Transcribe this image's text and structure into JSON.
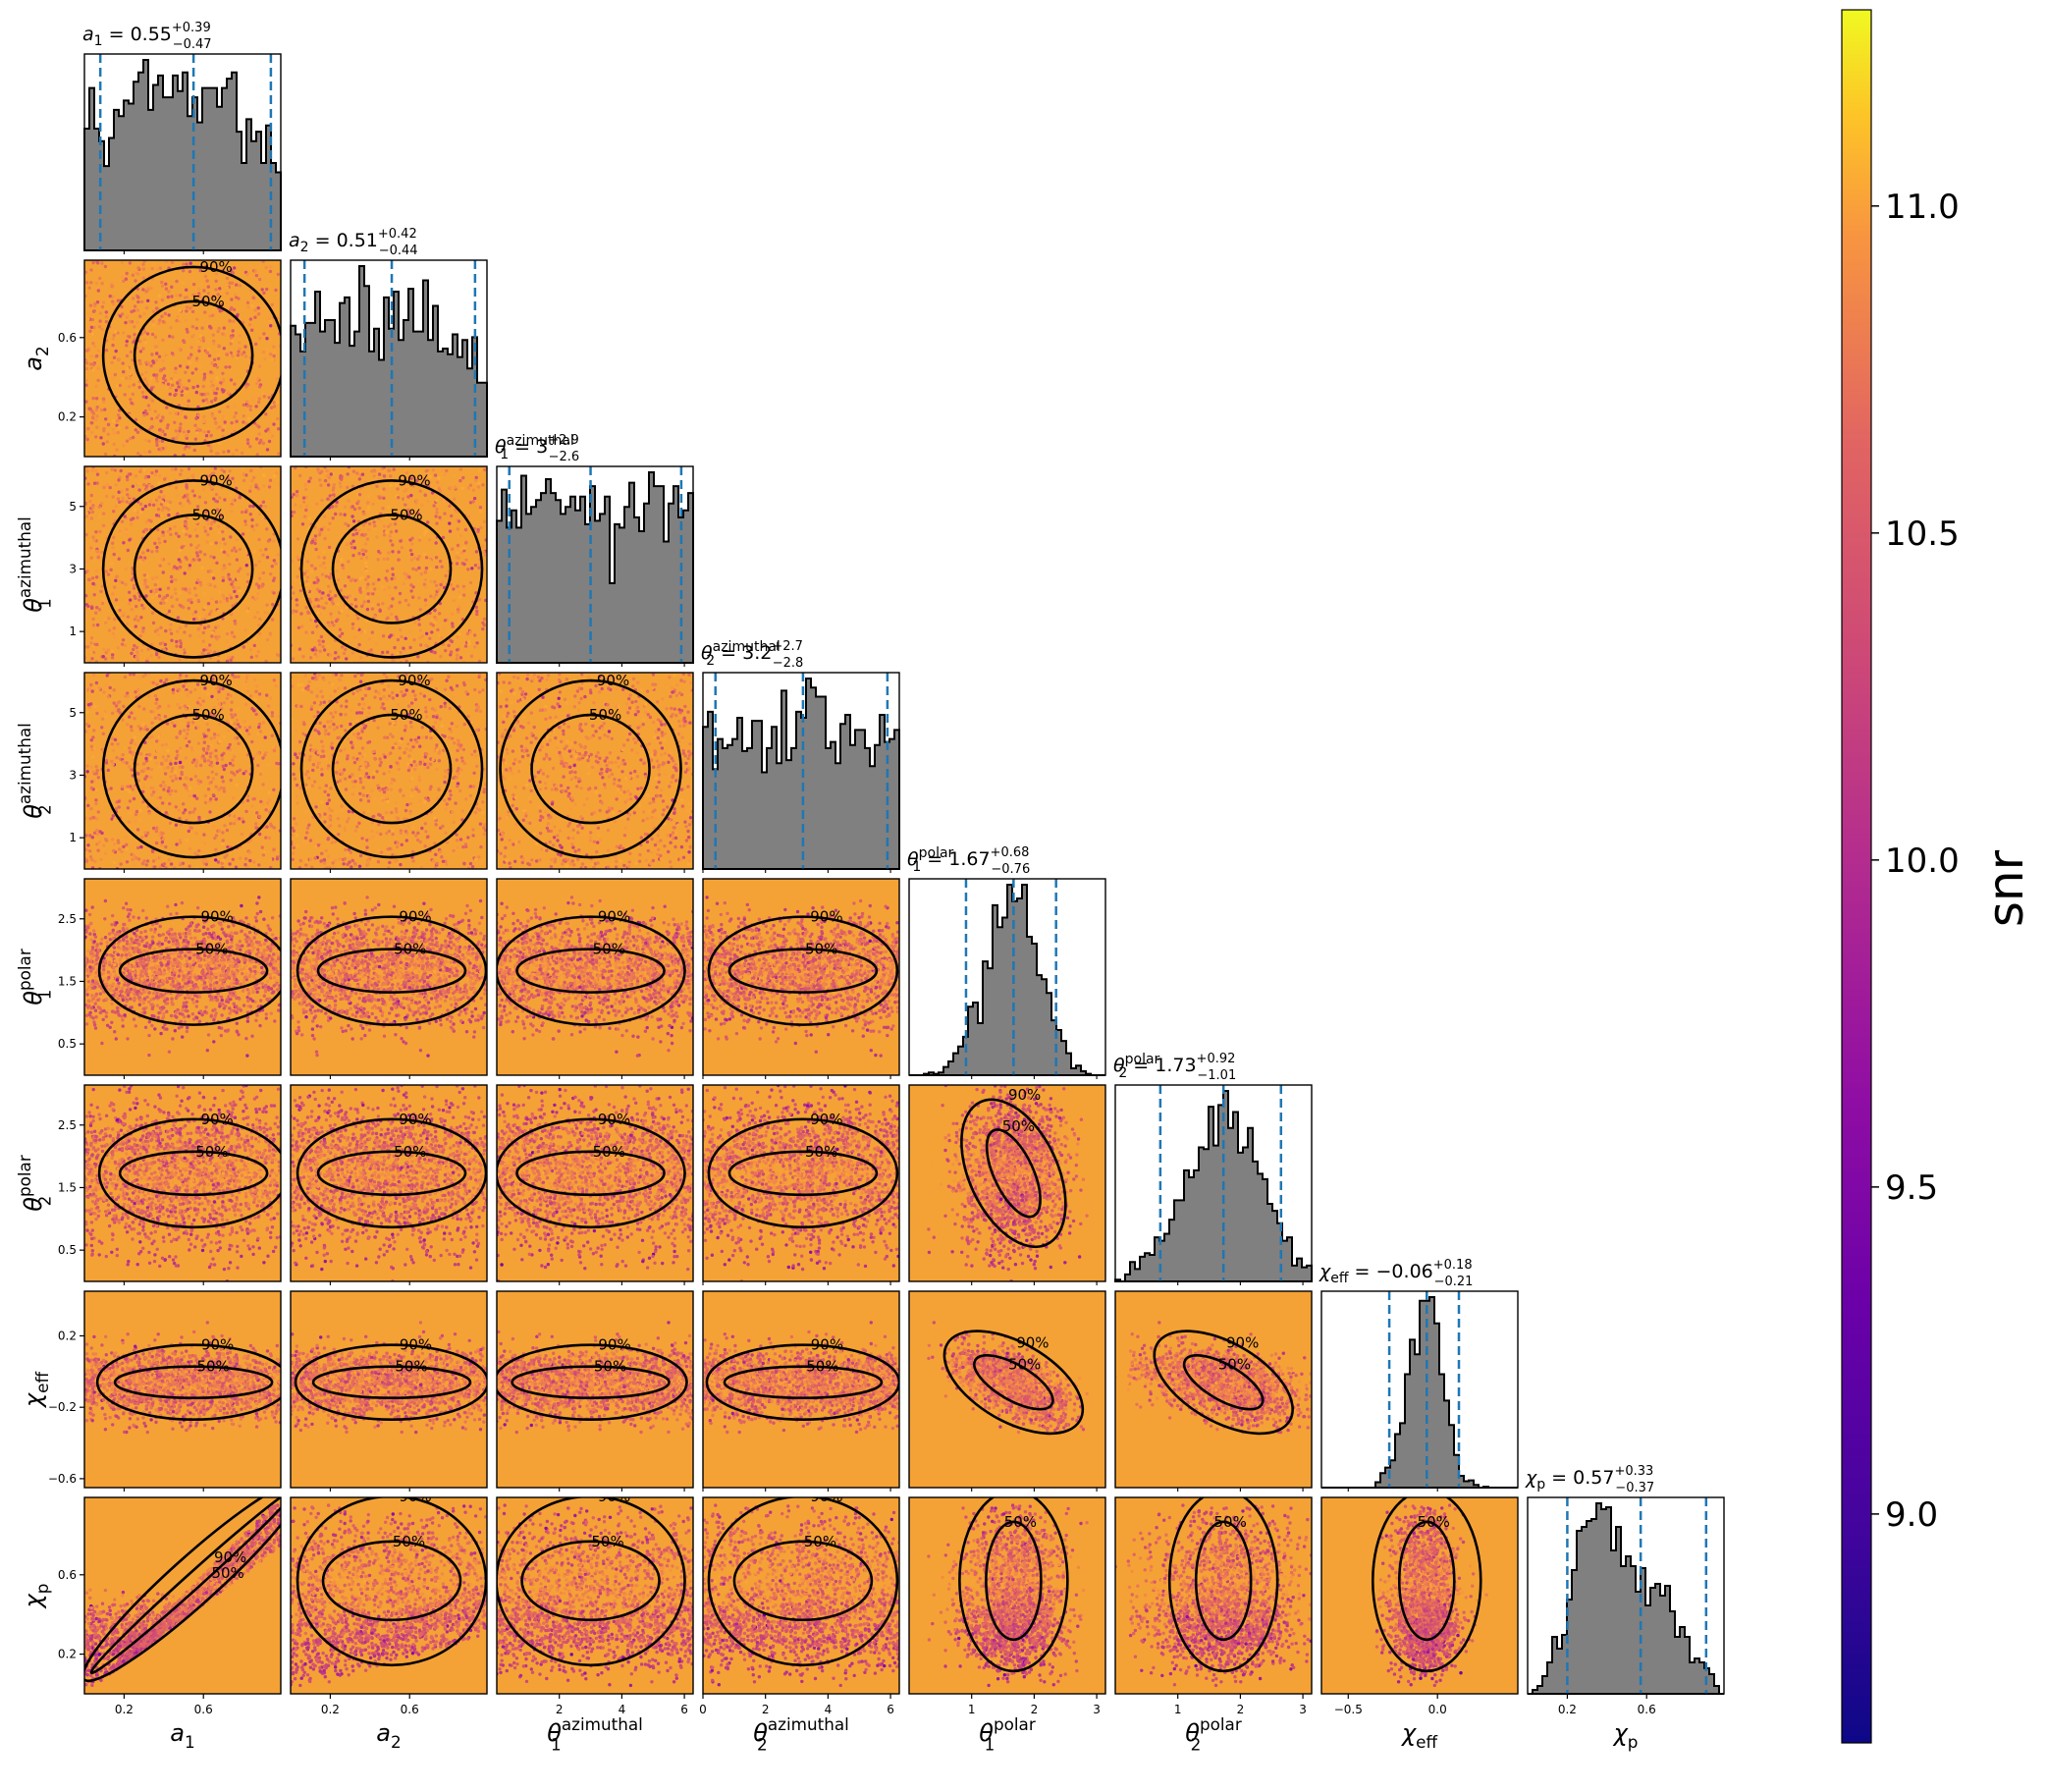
{
  "chart_data": {
    "type": "scatter",
    "title": "",
    "parameters": [
      {
        "key": "a1",
        "axis_label": "a_1",
        "title_name": "a_1",
        "median": "0.55",
        "plus": "+0.39",
        "minus": "−0.47",
        "range": [
          0.0,
          0.99
        ],
        "ticks": [
          0.2,
          0.6
        ],
        "median_value": 0.55
      },
      {
        "key": "a2",
        "axis_label": "a_2",
        "title_name": "a_2",
        "median": "0.51",
        "plus": "+0.42",
        "minus": "−0.44",
        "range": [
          0.0,
          0.99
        ],
        "ticks": [
          0.2,
          0.6
        ],
        "median_value": 0.51
      },
      {
        "key": "theta1_az",
        "axis_label": "θ_1^azimuthal",
        "title_name": "θ_1^azimuthal",
        "median": "3",
        "plus": "+2.9",
        "minus": "−2.6",
        "range": [
          0.0,
          6.28
        ],
        "ticks": [
          2,
          4,
          6
        ],
        "ticks_y": [
          1,
          3,
          5
        ],
        "median_value": 3.0
      },
      {
        "key": "theta2_az",
        "axis_label": "θ_2^azimuthal",
        "title_name": "θ_2^azimuthal",
        "median": "3.2",
        "plus": "+2.7",
        "minus": "−2.8",
        "range": [
          0.0,
          6.28
        ],
        "ticks": [
          0,
          2,
          4,
          6
        ],
        "ticks_y": [
          1,
          3,
          5
        ],
        "median_value": 3.2
      },
      {
        "key": "theta1_pol",
        "axis_label": "θ_1^polar",
        "title_name": "θ_1^polar",
        "median": "1.67",
        "plus": "+0.68",
        "minus": "−0.76",
        "range": [
          0.0,
          3.14
        ],
        "ticks": [
          1,
          2,
          3
        ],
        "ticks_y": [
          0.5,
          1.5,
          2.5
        ],
        "median_value": 1.67
      },
      {
        "key": "theta2_pol",
        "axis_label": "θ_2^polar",
        "title_name": "θ_2^polar",
        "median": "1.73",
        "plus": "+0.92",
        "minus": "−1.01",
        "range": [
          0.0,
          3.14
        ],
        "ticks": [
          1,
          2,
          3
        ],
        "ticks_y": [
          0.5,
          1.5,
          2.5
        ],
        "median_value": 1.73
      },
      {
        "key": "chi_eff",
        "axis_label": "χ_eff",
        "title_name": "χ_eff",
        "median": "−0.06",
        "plus": "+0.18",
        "minus": "−0.21",
        "range": [
          -0.65,
          0.45
        ],
        "ticks": [
          -0.5,
          0.0
        ],
        "ticks_y": [
          -0.6,
          -0.2,
          0.2
        ],
        "median_value": -0.06
      },
      {
        "key": "chi_p",
        "axis_label": "χ_p",
        "title_name": "χ_p",
        "median": "0.57",
        "plus": "+0.33",
        "minus": "−0.37",
        "range": [
          0.0,
          0.99
        ],
        "ticks": [
          0.2,
          0.6
        ],
        "ticks_y": [
          0.2,
          0.6
        ],
        "median_value": 0.57
      }
    ],
    "tick_label_text": {
      "a1": [
        "0.2",
        "0.6"
      ],
      "a2": [
        "0.2",
        "0.6"
      ],
      "theta1_az_x": [
        "2",
        "4",
        "6"
      ],
      "theta2_az_x": [
        "0",
        "2",
        "4",
        "6"
      ],
      "theta_az_y": [
        "1",
        "3",
        "5"
      ],
      "theta_pol_x": [
        "1",
        "2",
        "3"
      ],
      "theta_pol_y": [
        "0.5",
        "1.5",
        "2.5"
      ],
      "chi_eff_x": [
        "−0.5",
        "0.0"
      ],
      "chi_eff_y": [
        "−0.6",
        "−0.2",
        "0.2"
      ],
      "chi_p": [
        "0.2",
        "0.6"
      ]
    },
    "contour_levels": [
      "50%",
      "90%"
    ],
    "colorbar": {
      "label": "snr",
      "range": [
        8.65,
        11.3
      ],
      "ticks": [
        9.0,
        9.5,
        10.0,
        10.5,
        11.0
      ],
      "tick_labels": [
        "9.0",
        "9.5",
        "10.0",
        "10.5",
        "11.0"
      ],
      "colormap": "plasma"
    },
    "histogram_color": "#808080",
    "quantile_line_color": "#1f77b4",
    "contour_color": "#000000"
  }
}
